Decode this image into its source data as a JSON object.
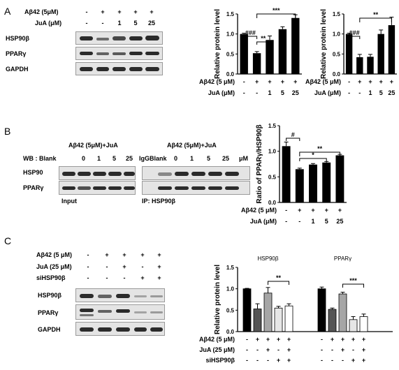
{
  "panels": {
    "A": {
      "letter": "A",
      "treat_labels": [
        "Aβ42 (5μM)",
        "JuA (μM)"
      ],
      "treat_rows": [
        [
          "-",
          "+",
          "+",
          "+",
          "+"
        ],
        [
          "-",
          "-",
          "1",
          "5",
          "25"
        ]
      ],
      "blot_labels": [
        "HSP90β",
        "PPARγ",
        "GAPDH"
      ]
    },
    "B": {
      "letter": "B",
      "header_left": "Aβ42 (5μM)+JuA",
      "header_right": "Aβ42 (5μM)+JuA",
      "wb_row_left": [
        "WB : Blank",
        "0",
        "1",
        "5",
        "25"
      ],
      "wb_row_right": [
        "IgG",
        "Blank",
        "0",
        "1",
        "5",
        "25",
        "μM"
      ],
      "blot_labels": [
        "HSP90",
        "PPARγ"
      ],
      "input_label": "Input",
      "ip_label": "IP: HSP90β"
    },
    "C": {
      "letter": "C",
      "treat_labels": [
        "Aβ42 (5 μM)",
        "JuA (25 μM)",
        "siHSP90β"
      ],
      "treat_rows": [
        [
          "-",
          "+",
          "+",
          "+",
          "+"
        ],
        [
          "-",
          "-",
          "+",
          "-",
          "+"
        ],
        [
          "-",
          "-",
          "-",
          "+",
          "+"
        ]
      ],
      "blot_labels": [
        "HSP90β",
        "PPARγ",
        "GAPDH"
      ]
    }
  },
  "chart_data": [
    {
      "type": "bar",
      "panel": "A",
      "title": "",
      "ylabel": "Relative protein level",
      "ylim": [
        0,
        1.5
      ],
      "yticks": [
        "0.0",
        "0.5",
        "1.0",
        "1.5"
      ],
      "categories": [
        "1",
        "2",
        "3",
        "4",
        "5"
      ],
      "values": [
        1.0,
        0.52,
        0.85,
        1.12,
        1.4
      ],
      "errors": [
        0.02,
        0.04,
        0.1,
        0.06,
        0.08
      ],
      "annotations": [
        "###",
        "**",
        "***"
      ],
      "row_labels": [
        "Aβ42 (5 μM)",
        "JuA (μM)"
      ],
      "rows": [
        [
          "-",
          "+",
          "+",
          "+",
          "+"
        ],
        [
          "-",
          "-",
          "1",
          "5",
          "25"
        ]
      ]
    },
    {
      "type": "bar",
      "panel": "A",
      "title": "",
      "ylabel": "Relative protein level",
      "ylim": [
        0,
        1.5
      ],
      "yticks": [
        "0.0",
        "0.5",
        "1.0",
        "1.5"
      ],
      "categories": [
        "1",
        "2",
        "3",
        "4",
        "5"
      ],
      "values": [
        1.0,
        0.42,
        0.43,
        1.0,
        1.22
      ],
      "errors": [
        0.02,
        0.07,
        0.06,
        0.1,
        0.2
      ],
      "annotations": [
        "###",
        "**"
      ],
      "row_labels": [
        "Aβ42 (5 μM)",
        "JuA (μM)"
      ],
      "rows": [
        [
          "-",
          "+",
          "+",
          "+",
          "+"
        ],
        [
          "-",
          "-",
          "1",
          "5",
          "25"
        ]
      ]
    },
    {
      "type": "bar",
      "panel": "B",
      "title": "",
      "ylabel": "Ratio of PPARγ/HSP90β",
      "ylim": [
        0,
        1.5
      ],
      "yticks": [
        "0.0",
        "0.5",
        "1.0",
        "1.5"
      ],
      "categories": [
        "1",
        "2",
        "3",
        "4",
        "5"
      ],
      "values": [
        1.1,
        0.65,
        0.74,
        0.78,
        0.92
      ],
      "errors": [
        0.08,
        0.02,
        0.02,
        0.02,
        0.02
      ],
      "annotations": [
        "#",
        "*",
        "**"
      ],
      "row_labels": [
        "Aβ42 (5 μM)",
        "JuA (μM)"
      ],
      "rows": [
        [
          "-",
          "+",
          "+",
          "+",
          "+"
        ],
        [
          "-",
          "-",
          "1",
          "5",
          "25"
        ]
      ]
    },
    {
      "type": "bar",
      "panel": "C",
      "ylabel": "Relative protein level",
      "ylim": [
        0,
        1.5
      ],
      "yticks": [
        "0.0",
        "0.5",
        "1.0",
        "1.5"
      ],
      "group_labels": [
        "HSP90β",
        "PPARγ"
      ],
      "bar_colors": [
        "#000000",
        "#555555",
        "#a6a6a6",
        "#e6e6e6",
        "#ffffff"
      ],
      "groups": [
        {
          "values": [
            1.0,
            0.53,
            0.9,
            0.55,
            0.6
          ],
          "errors": [
            0.01,
            0.12,
            0.13,
            0.04,
            0.05
          ]
        },
        {
          "values": [
            1.0,
            0.52,
            0.88,
            0.28,
            0.35
          ],
          "errors": [
            0.04,
            0.03,
            0.04,
            0.07,
            0.06
          ]
        }
      ],
      "annotations": [
        "**",
        "***"
      ],
      "row_labels": [
        "Aβ42 (5 μM)",
        "JuA (25 μM)",
        "siHSP90β"
      ],
      "rows": [
        [
          "-",
          "+",
          "+",
          "+",
          "+",
          "-",
          "+",
          "+",
          "+",
          "+"
        ],
        [
          "-",
          "-",
          "+",
          "-",
          "+",
          "-",
          "-",
          "+",
          "-",
          "+"
        ],
        [
          "-",
          "-",
          "-",
          "+",
          "+",
          "-",
          "-",
          "-",
          "+",
          "+"
        ]
      ]
    }
  ]
}
